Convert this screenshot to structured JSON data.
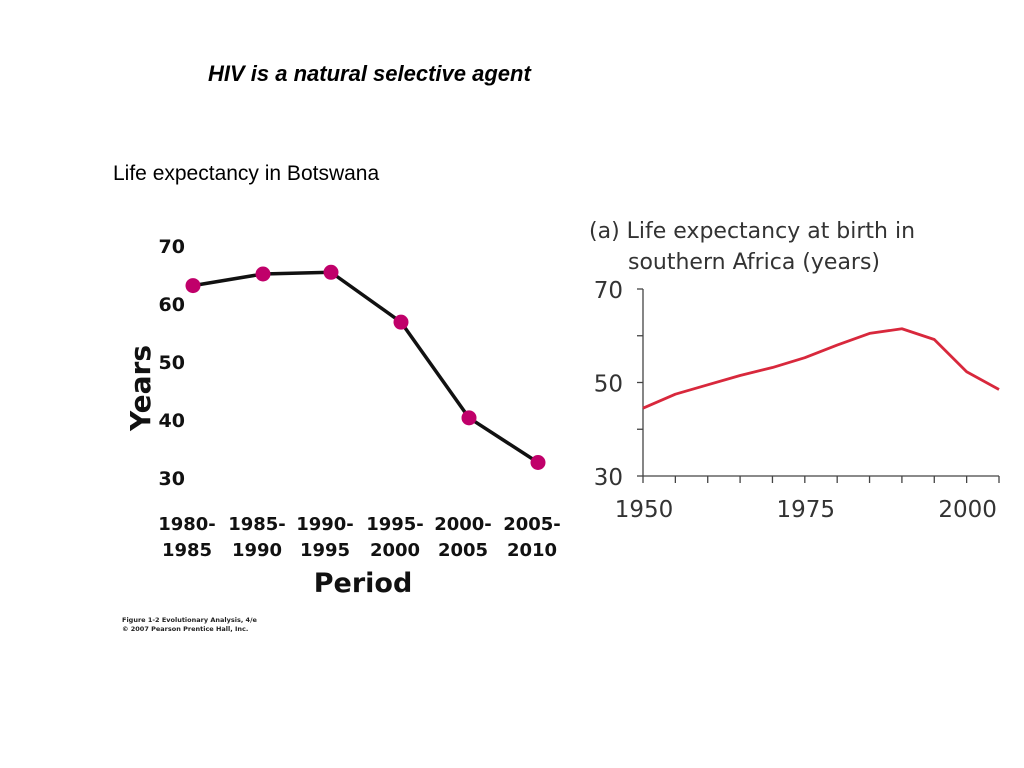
{
  "slide": {
    "title": "HIV is a natural selective agent",
    "subtitle": "Life expectancy in Botswana"
  },
  "chart_data": [
    {
      "type": "line",
      "title": "",
      "ylabel": "Years",
      "xlabel": "Period",
      "categories": [
        "1980-\n1985",
        "1985-\n1990",
        "1990-\n1995",
        "1995-\n2000",
        "2000-\n2005",
        "2005-\n2010"
      ],
      "values": [
        63,
        65,
        65.3,
        56.7,
        40.2,
        32.5
      ],
      "ylim": [
        30,
        70
      ],
      "yticks": [
        70,
        60,
        50,
        40,
        30
      ],
      "grid": false,
      "colors": {
        "line": "#111111",
        "marker": "#c0006a"
      },
      "credit": [
        "Figure 1-2  Evolutionary Analysis, 4/e",
        "© 2007 Pearson Prentice Hall, Inc."
      ]
    },
    {
      "type": "line",
      "title": [
        "(a) Life expectancy at birth in",
        "southern Africa (years)"
      ],
      "xlabel": "",
      "ylabel": "",
      "x": [
        1950,
        1955,
        1960,
        1965,
        1970,
        1975,
        1980,
        1985,
        1990,
        1995,
        2000,
        2005
      ],
      "values": [
        44.5,
        47.5,
        49.5,
        51.5,
        53.2,
        55.3,
        58.0,
        60.5,
        61.5,
        59.2,
        52.3,
        48.5
      ],
      "xlim": [
        1950,
        2005
      ],
      "ylim": [
        30,
        70
      ],
      "xticks": [
        1950,
        1975,
        2000
      ],
      "yticks": [
        70,
        50,
        30
      ],
      "grid": false,
      "colors": {
        "line": "#d8283c",
        "axis": "#444444"
      }
    }
  ]
}
